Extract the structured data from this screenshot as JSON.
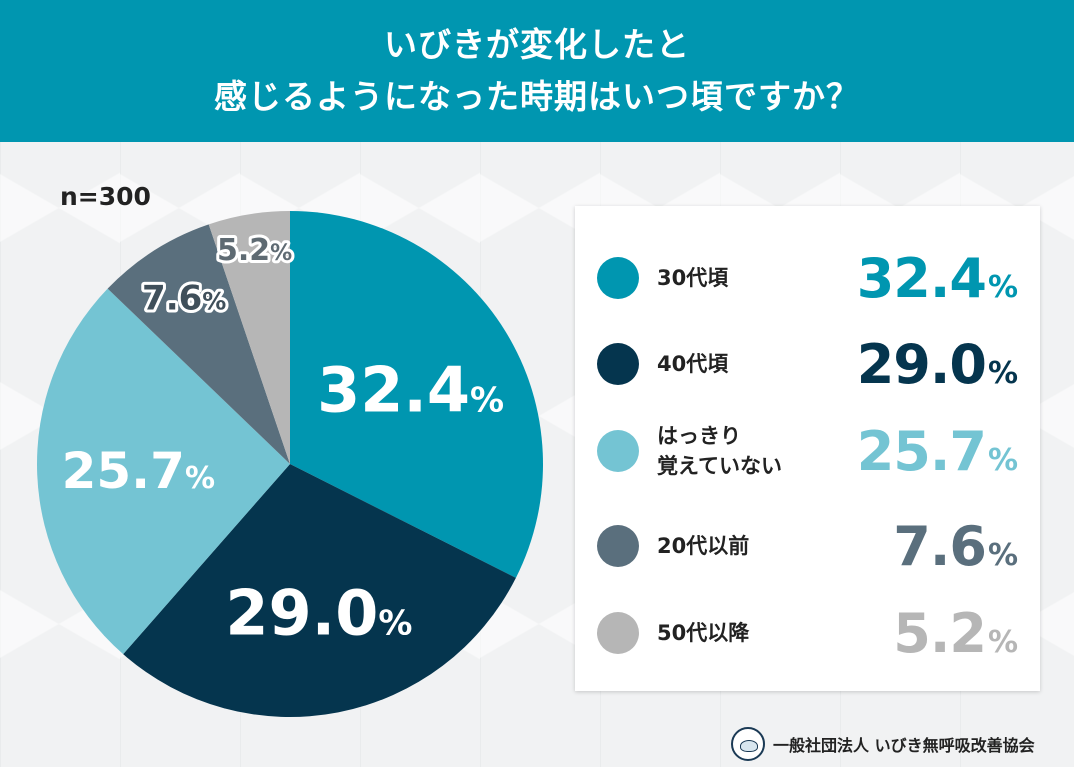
{
  "header": {
    "line1": "いびきが変化したと",
    "line2": "感じるようになった時期はいつ頃ですか？"
  },
  "sample_size": "n=300",
  "chart_data": {
    "type": "pie",
    "title": "いびきが変化したと感じるようになった時期はいつ頃ですか？",
    "categories": [
      "30代頃",
      "40代頃",
      "はっきり覚えていない",
      "20代以前",
      "50代以降"
    ],
    "values": [
      32.4,
      29.0,
      25.7,
      7.6,
      5.2
    ],
    "value_labels": [
      "32.4",
      "29.0",
      "25.7",
      "7.6",
      "5.2"
    ],
    "unit": "%",
    "colors": [
      "#0096b0",
      "#05354e",
      "#74c4d3",
      "#5a6f7d",
      "#b6b6b6"
    ],
    "legend_position": "right",
    "legend_label_lines": [
      [
        "30代頃"
      ],
      [
        "40代頃"
      ],
      [
        "はっきり",
        "覚えていない"
      ],
      [
        "20代以前"
      ],
      [
        "50代以降"
      ]
    ]
  },
  "footer": {
    "organization": "一般社団法人 いびき無呼吸改善協会",
    "logo_icon": "sleeping-face-icon"
  }
}
